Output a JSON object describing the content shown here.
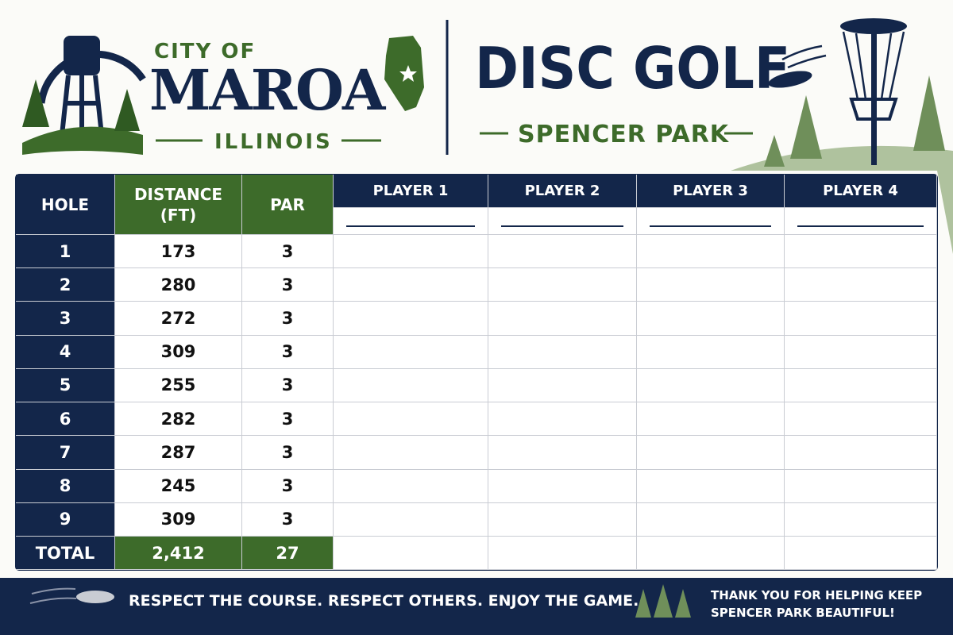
{
  "header": {
    "city_prefix": "CITY OF",
    "city": "MAROA",
    "state": "ILLINOIS",
    "title": "DISC GOLF",
    "subtitle": "SPENCER PARK"
  },
  "table": {
    "columns": [
      "HOLE",
      "DISTANCE (FT)",
      "PAR",
      "PLAYER 1",
      "PLAYER 2",
      "PLAYER 3",
      "PLAYER 4"
    ],
    "rows": [
      [
        1,
        173,
        3
      ],
      [
        2,
        280,
        3
      ],
      [
        3,
        272,
        3
      ],
      [
        4,
        309,
        3
      ],
      [
        5,
        255,
        3
      ],
      [
        6,
        282,
        3
      ],
      [
        7,
        287,
        3
      ],
      [
        8,
        245,
        3
      ],
      [
        9,
        309,
        3
      ]
    ],
    "total": [
      "TOTAL",
      "2,412",
      27
    ]
  },
  "footer": {
    "motto": "RESPECT THE COURSE. RESPECT OTHERS. ENJOY THE GAME.",
    "thanks": "THANK YOU FOR HELPING KEEP SPENCER PARK BEAUTIFUL!"
  }
}
